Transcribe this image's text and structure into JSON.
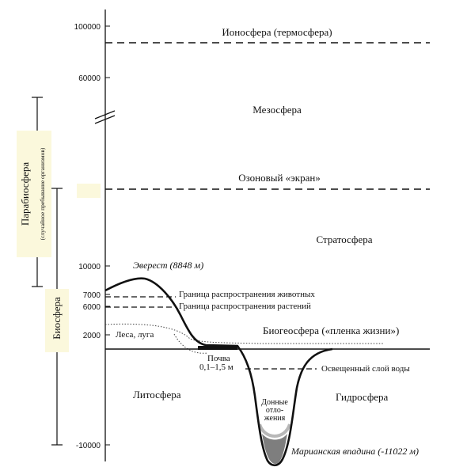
{
  "axis_ticks": [
    "100000",
    "60000",
    "10000",
    "7000",
    "6000",
    "2000",
    "-10000"
  ],
  "layers": {
    "ionosphere": "Ионосфера (термосфера)",
    "mesosphere": "Мезосфера",
    "ozone": "Озоновый «экран»",
    "stratosphere": "Стратосфера",
    "biogeosphere": "Биогеосфера («пленка жизни»)",
    "lithosphere": "Литосфера",
    "hydrosphere": "Гидросфера"
  },
  "spheres": {
    "parabiosphere": "Парабиосфера",
    "parabiosphere_note": "(случайное пребывание организмов)",
    "biosphere": "Биосфера"
  },
  "labels": {
    "everest": "Эверест (8848 м)",
    "animals_limit": "Граница распространения животных",
    "plants_limit": "Граница распространения растений",
    "forests": "Леса, луга",
    "soil": "Почва",
    "soil_depth": "0,1–1,5 м",
    "lit_water": "Освещенный слой воды",
    "sediments_1": "Донные",
    "sediments_2": "отло-",
    "sediments_3": "жения",
    "trench": "Марианская впадина (-11022 м)"
  }
}
